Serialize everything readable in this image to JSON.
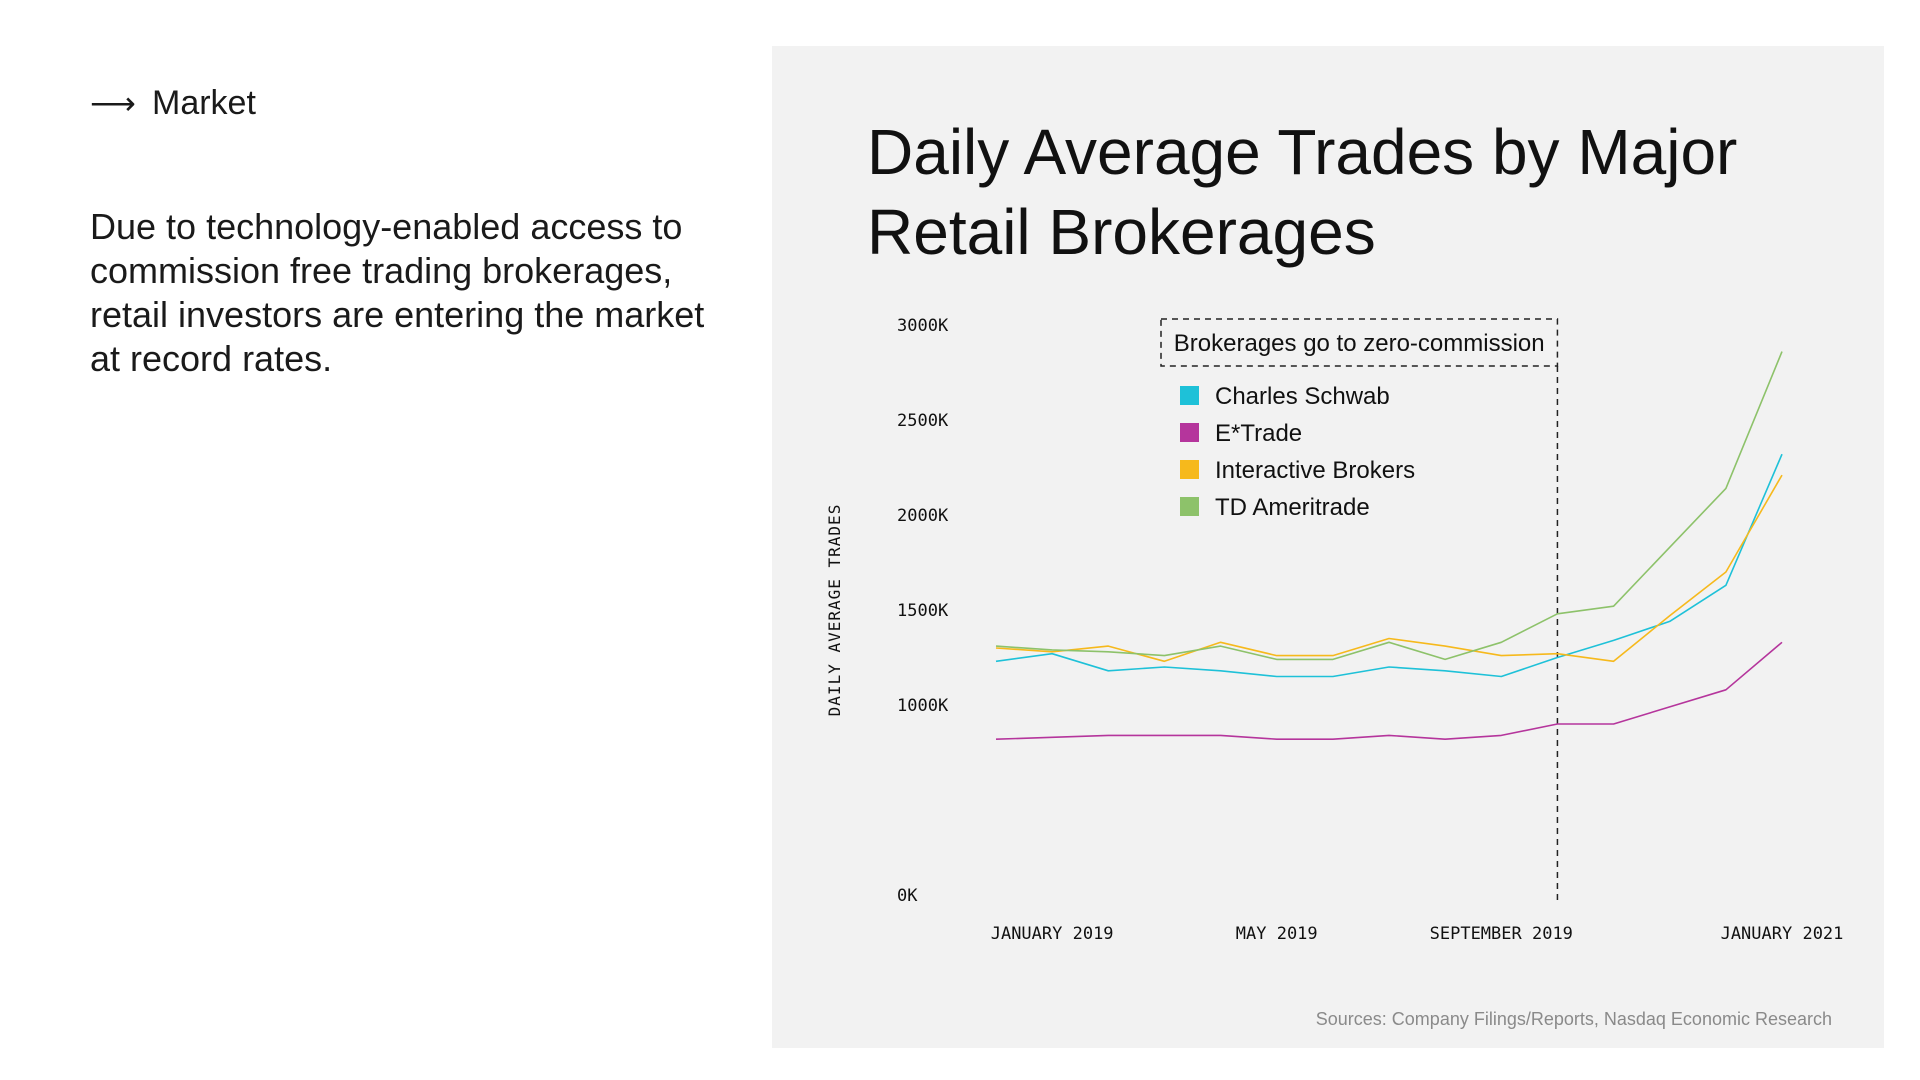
{
  "left": {
    "section_arrow": "⟶",
    "section_label": "Market",
    "intro_text": "Due to technology-enabled access to commission free trading brokerages, retail investors are entering the market at record rates."
  },
  "chart_data": {
    "type": "line",
    "title": "Daily Average Trades by Major Retail Brokerages",
    "ylabel": "DAILY AVERAGE TRADES",
    "xlabel": "",
    "ylim": [
      0,
      3000
    ],
    "y_ticks": [
      0,
      500,
      1000,
      1500,
      2000,
      2500,
      3000
    ],
    "y_tick_labels": [
      "0K",
      "1000K",
      "1500K",
      "2000K",
      "2500K",
      "3000K"
    ],
    "y_tick_values": [
      0,
      1000,
      1500,
      2000,
      2500,
      3000
    ],
    "x_tick_labels": [
      "JANUARY 2019",
      "MAY 2019",
      "SEPTEMBER 2019",
      "JANUARY 2021"
    ],
    "x_tick_index": [
      1,
      5,
      9,
      14
    ],
    "points_count": 15,
    "annotation": {
      "label": "Brokerages go to zero-commission",
      "at_index": 10
    },
    "grid": false,
    "legend_placement": "top-center",
    "series": [
      {
        "name": "Charles Schwab",
        "color": "#1ec1d8",
        "values": [
          1230,
          1270,
          1180,
          1200,
          1180,
          1150,
          1150,
          1200,
          1180,
          1150,
          1250,
          1340,
          1440,
          1630,
          2320
        ]
      },
      {
        "name": "E*Trade",
        "color": "#b5359c",
        "values": [
          820,
          830,
          840,
          840,
          840,
          820,
          820,
          840,
          820,
          840,
          900,
          900,
          990,
          1080,
          1330
        ]
      },
      {
        "name": "Interactive Brokers",
        "color": "#f6b91c",
        "values": [
          1300,
          1280,
          1310,
          1230,
          1330,
          1260,
          1260,
          1350,
          1310,
          1260,
          1270,
          1230,
          1470,
          1700,
          2210
        ]
      },
      {
        "name": "TD Ameritrade",
        "color": "#8dc26a",
        "values": [
          1310,
          1290,
          1280,
          1260,
          1310,
          1240,
          1240,
          1330,
          1240,
          1330,
          1480,
          1520,
          1830,
          2140,
          2860
        ]
      }
    ]
  },
  "footer": {
    "source": "Sources: Company Filings/Reports, Nasdaq Economic Research"
  }
}
